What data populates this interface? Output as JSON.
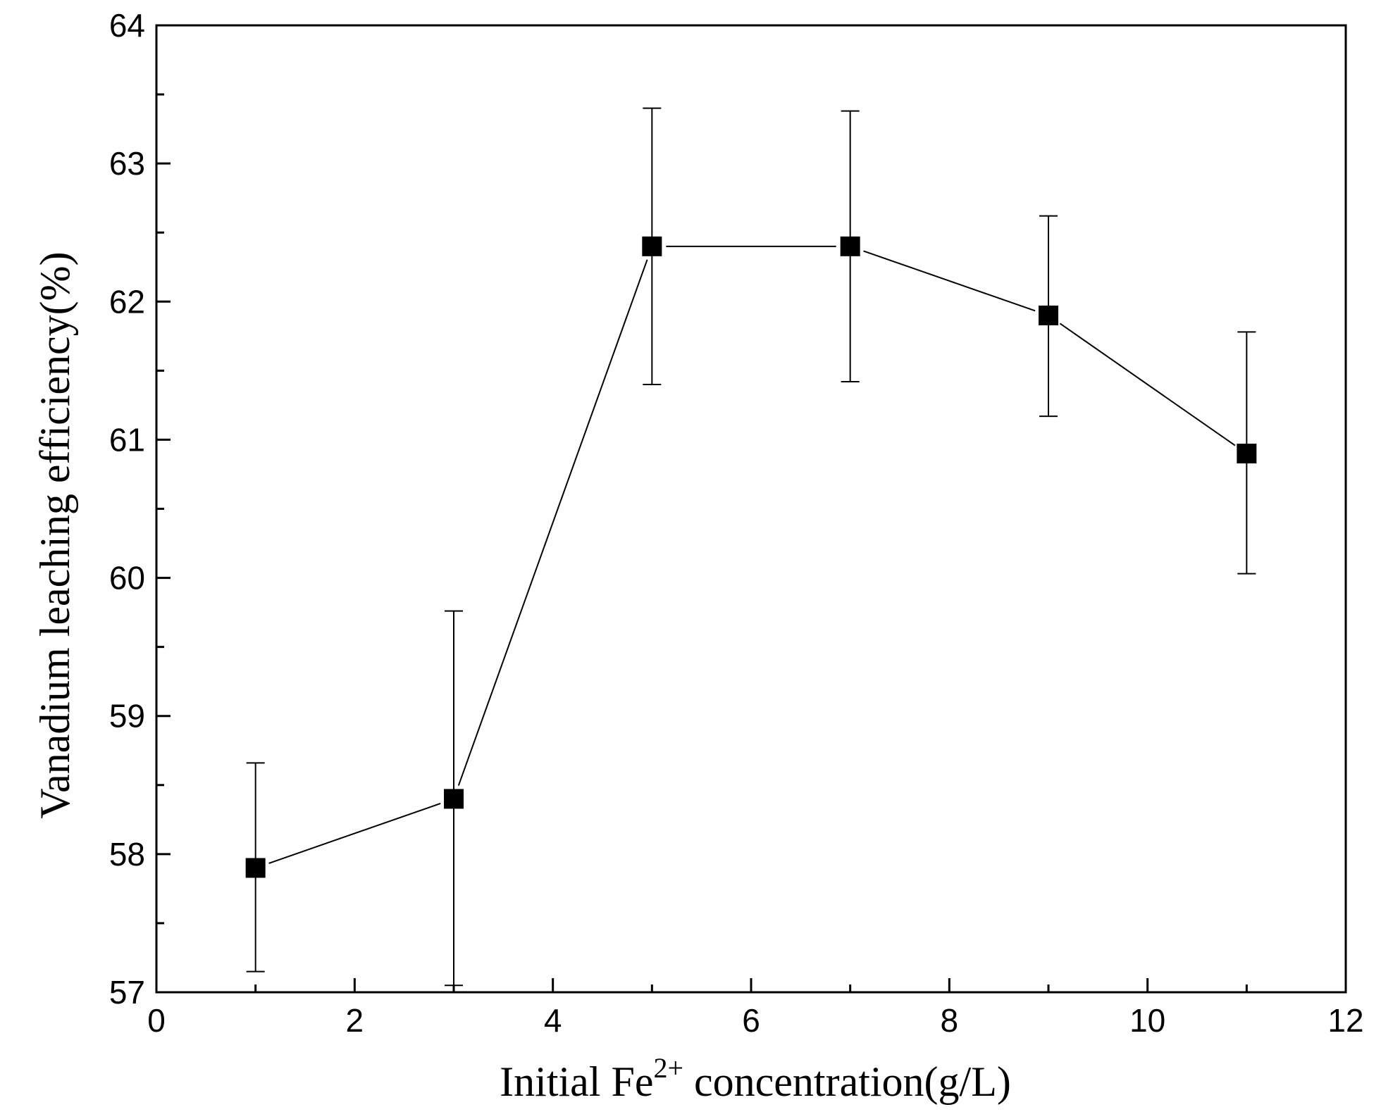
{
  "chart_data": {
    "type": "line",
    "title": "",
    "xlabel_parts": {
      "before": "Initial Fe",
      "superscript": "2+",
      "after": " concentration(g/L)"
    },
    "ylabel": "Vanadium leaching efficiency(%)",
    "xlim": [
      0,
      12
    ],
    "ylim": [
      57,
      64
    ],
    "xticks": [
      0,
      2,
      4,
      6,
      8,
      10,
      12
    ],
    "yticks": [
      57,
      58,
      59,
      60,
      61,
      62,
      63,
      64
    ],
    "x_minor_tick_step": 1,
    "y_minor_tick_step": 0.5,
    "grid": false,
    "marker": "filled-square",
    "series": [
      {
        "x": [
          1,
          3,
          5,
          7,
          9,
          11
        ],
        "y": [
          57.9,
          58.4,
          62.4,
          62.4,
          61.9,
          60.9
        ],
        "yerr_low": [
          57.15,
          57.05,
          61.4,
          61.42,
          61.17,
          60.03
        ],
        "yerr_high": [
          58.66,
          59.76,
          63.4,
          63.38,
          62.62,
          61.78
        ]
      }
    ],
    "colors": {
      "line": "#000000",
      "marker": "#000000",
      "axes": "#000000"
    }
  }
}
